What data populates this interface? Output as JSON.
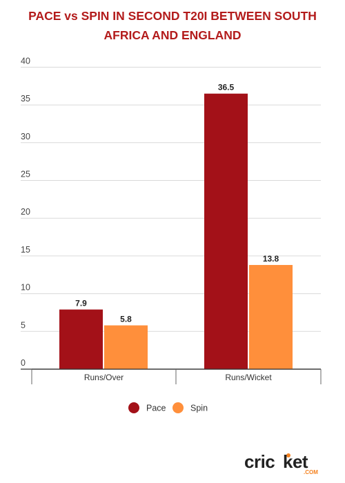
{
  "title_lines": [
    "PACE vs SPIN IN SECOND T20I BETWEEN SOUTH",
    "AFRICA AND ENGLAND"
  ],
  "colors": {
    "title": "#b31b1b",
    "pace": "#a31118",
    "spin": "#ff8f3b",
    "grid": "#d9d9d9",
    "axis": "#333333",
    "logo_dark": "#222222",
    "logo_accent": "#f58220"
  },
  "chart_data": {
    "type": "bar",
    "title": "PACE vs SPIN IN SECOND T20I BETWEEN SOUTH AFRICA AND ENGLAND",
    "categories": [
      "Runs/Over",
      "Runs/Wicket"
    ],
    "series": [
      {
        "name": "Pace",
        "values": [
          7.9,
          36.5
        ]
      },
      {
        "name": "Spin",
        "values": [
          5.8,
          13.8
        ]
      }
    ],
    "y_ticks": [
      0,
      5,
      10,
      15,
      20,
      25,
      30,
      35,
      40
    ],
    "ylim": [
      0,
      40
    ],
    "grid": true,
    "legend_position": "bottom-center"
  },
  "logo": {
    "main": "cricket",
    "sub": ".com"
  }
}
